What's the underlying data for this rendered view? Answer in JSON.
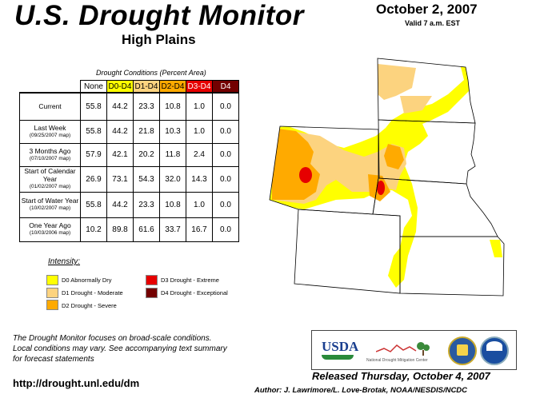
{
  "header": {
    "title": "U.S. Drought Monitor",
    "subtitle": "High Plains",
    "date": "October 2, 2007",
    "valid": "Valid 7 a.m. EST"
  },
  "table": {
    "caption": "Drought Conditions (Percent Area)",
    "columns": [
      "None",
      "D0-D4",
      "D1-D4",
      "D2-D4",
      "D3-D4",
      "D4"
    ],
    "column_colors": [
      "#ffffff",
      "#ffff00",
      "#fcd37f",
      "#ffaa00",
      "#e60000",
      "#730000"
    ],
    "rows": [
      {
        "label": "Current",
        "sublabel": "",
        "values": [
          "55.8",
          "44.2",
          "23.3",
          "10.8",
          "1.0",
          "0.0"
        ]
      },
      {
        "label": "Last Week",
        "sublabel": "(09/25/2007 map)",
        "values": [
          "55.8",
          "44.2",
          "21.8",
          "10.3",
          "1.0",
          "0.0"
        ]
      },
      {
        "label": "3 Months Ago",
        "sublabel": "(07/10/2007 map)",
        "values": [
          "57.9",
          "42.1",
          "20.2",
          "11.8",
          "2.4",
          "0.0"
        ]
      },
      {
        "label": "Start of Calendar Year",
        "sublabel": "(01/02/2007 map)",
        "values": [
          "26.9",
          "73.1",
          "54.3",
          "32.0",
          "14.3",
          "0.0"
        ]
      },
      {
        "label": "Start of Water Year",
        "sublabel": "(10/02/2007 map)",
        "values": [
          "55.8",
          "44.2",
          "23.3",
          "10.8",
          "1.0",
          "0.0"
        ]
      },
      {
        "label": "One Year Ago",
        "sublabel": "(10/03/2006 map)",
        "values": [
          "10.2",
          "89.8",
          "61.6",
          "33.7",
          "16.7",
          "0.0"
        ]
      }
    ]
  },
  "legend": {
    "title": "Intensity:",
    "items": [
      {
        "label": "D0 Abnormally Dry",
        "color": "#ffff00"
      },
      {
        "label": "D1 Drought - Moderate",
        "color": "#fcd37f"
      },
      {
        "label": "D2 Drought - Severe",
        "color": "#ffaa00"
      },
      {
        "label": "D3 Drought - Extreme",
        "color": "#e60000"
      },
      {
        "label": "D4 Drought - Exceptional",
        "color": "#730000"
      }
    ]
  },
  "note": {
    "line1": "The Drought Monitor focuses on broad-scale conditions.",
    "line2": "Local conditions may vary. See accompanying text summary",
    "line3": "for forecast statements"
  },
  "footer": {
    "url": "http://drought.unl.edu/dm",
    "released": "Released Thursday, October 4, 2007",
    "author": "Author: J. Lawrimore/L. Love-Brotak, NOAA/NESDIS/NCDC"
  },
  "logos": {
    "usda": "USDA",
    "ndmc": "National Drought Mitigation Center"
  },
  "map": {
    "region": "High Plains",
    "states_shown": [
      "Wyoming",
      "Colorado",
      "North Dakota",
      "South Dakota",
      "Nebraska",
      "Kansas"
    ]
  }
}
